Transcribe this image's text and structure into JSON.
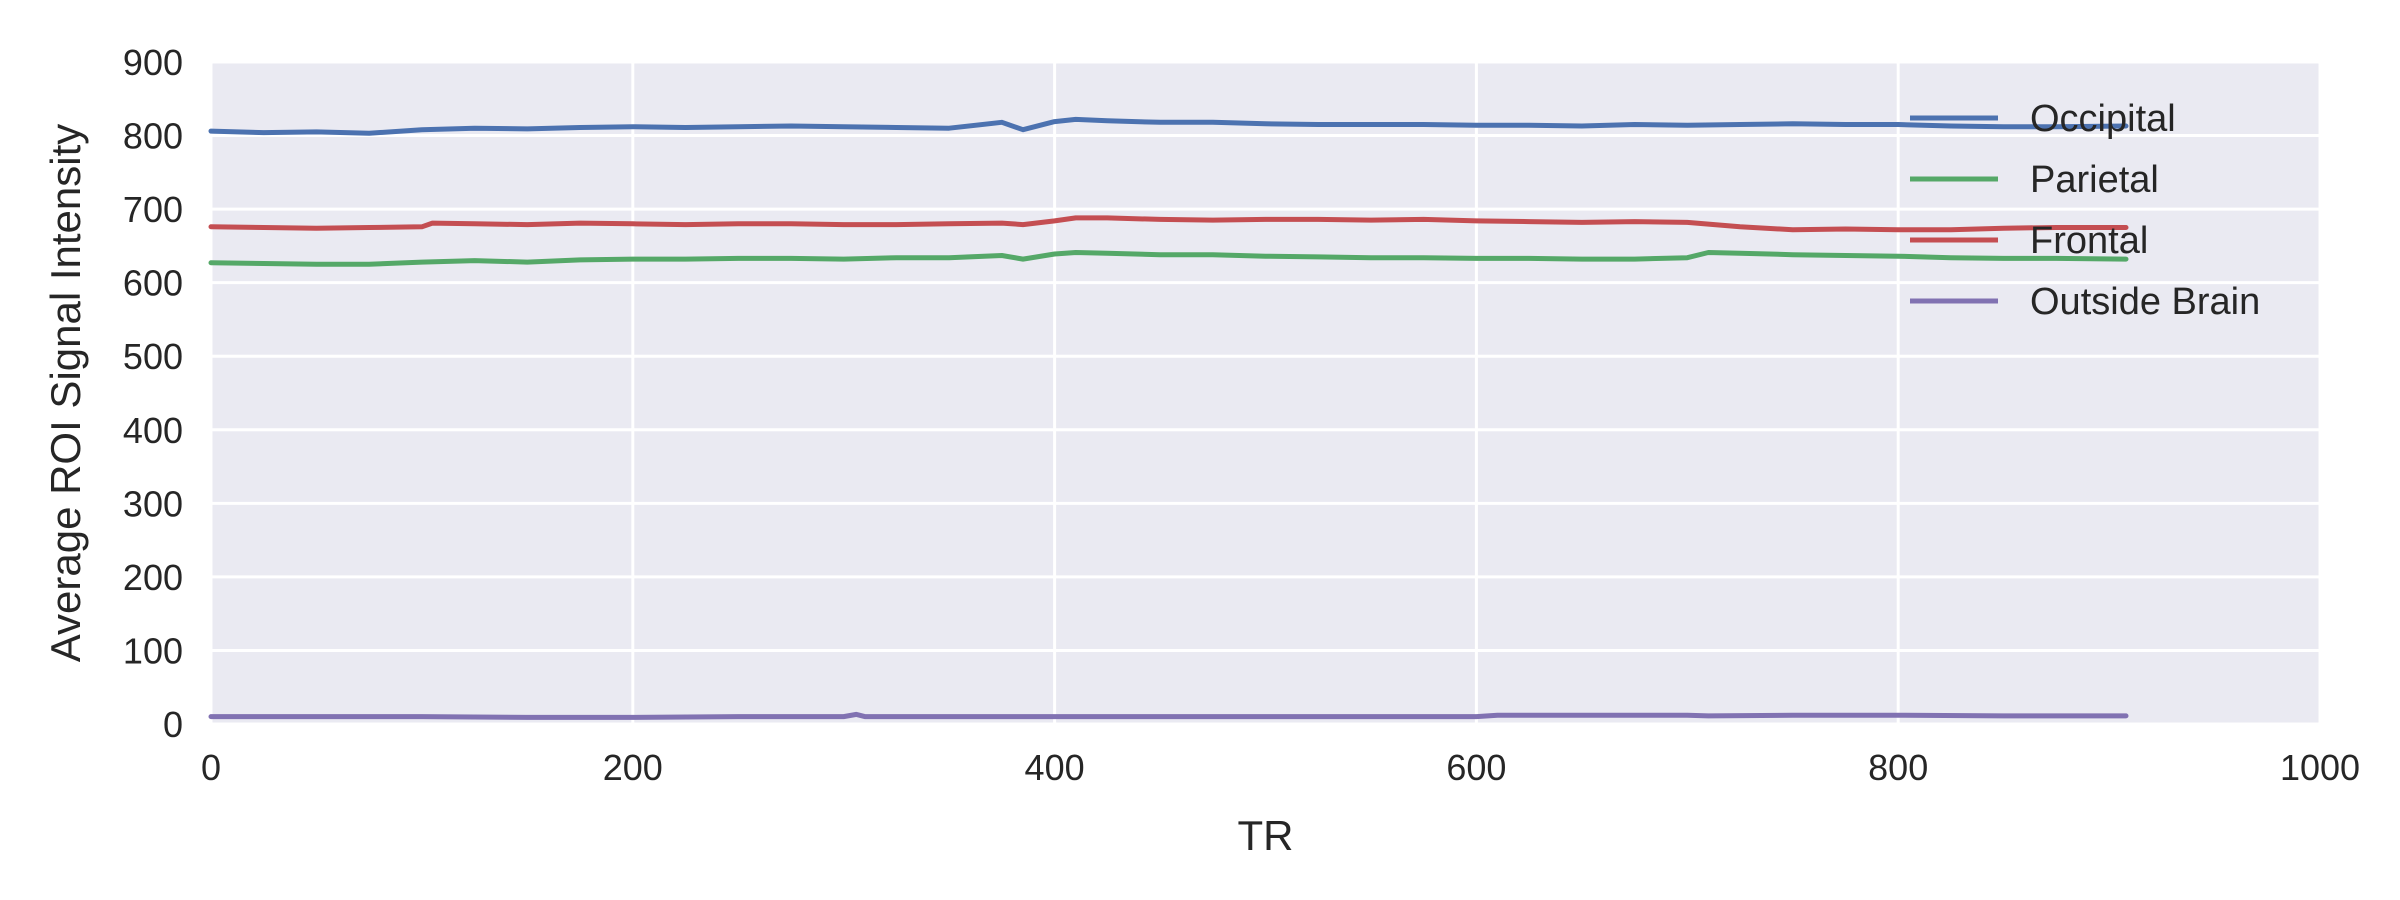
{
  "chart_data": {
    "type": "line",
    "title": "",
    "xlabel": "TR",
    "ylabel": "Average ROI Signal Intensity",
    "xlim": [
      0,
      1000
    ],
    "ylim": [
      0,
      900
    ],
    "xticks": [
      0,
      200,
      400,
      600,
      800,
      1000
    ],
    "yticks": [
      0,
      100,
      200,
      300,
      400,
      500,
      600,
      700,
      800,
      900
    ],
    "grid": true,
    "legend_position": "top-right",
    "style": {
      "background": "#EAEAF2",
      "grid_color": "#FFFFFF"
    },
    "series": [
      {
        "name": "Occipital",
        "color": "#4C72B0",
        "x": [
          0,
          25,
          50,
          75,
          100,
          125,
          150,
          175,
          200,
          225,
          250,
          275,
          300,
          325,
          350,
          375,
          385,
          400,
          410,
          425,
          450,
          475,
          500,
          525,
          550,
          575,
          600,
          625,
          650,
          675,
          700,
          725,
          750,
          775,
          800,
          825,
          850,
          875,
          908
        ],
        "y": [
          806,
          804,
          805,
          803,
          808,
          810,
          809,
          811,
          812,
          811,
          812,
          813,
          812,
          811,
          810,
          818,
          808,
          819,
          822,
          820,
          818,
          818,
          816,
          815,
          815,
          815,
          814,
          814,
          813,
          815,
          814,
          815,
          816,
          815,
          815,
          813,
          812,
          812,
          813
        ]
      },
      {
        "name": "Parietal",
        "color": "#55A868",
        "x": [
          0,
          25,
          50,
          75,
          100,
          125,
          150,
          175,
          200,
          225,
          250,
          275,
          300,
          325,
          350,
          375,
          385,
          400,
          410,
          425,
          450,
          475,
          500,
          525,
          550,
          575,
          600,
          625,
          650,
          675,
          700,
          710,
          725,
          750,
          775,
          800,
          825,
          850,
          875,
          908
        ],
        "y": [
          627,
          626,
          625,
          625,
          628,
          630,
          628,
          631,
          632,
          632,
          633,
          633,
          632,
          634,
          634,
          637,
          632,
          639,
          641,
          640,
          638,
          638,
          636,
          635,
          634,
          634,
          633,
          633,
          632,
          632,
          634,
          641,
          640,
          638,
          637,
          636,
          634,
          633,
          633,
          632
        ]
      },
      {
        "name": "Frontal",
        "color": "#C44E52",
        "x": [
          0,
          25,
          50,
          75,
          100,
          105,
          125,
          150,
          175,
          200,
          225,
          250,
          275,
          300,
          325,
          350,
          375,
          385,
          400,
          410,
          425,
          450,
          475,
          500,
          525,
          550,
          575,
          600,
          625,
          650,
          675,
          700,
          725,
          750,
          775,
          800,
          825,
          850,
          875,
          908
        ],
        "y": [
          676,
          675,
          674,
          675,
          676,
          681,
          680,
          679,
          681,
          680,
          679,
          680,
          680,
          679,
          679,
          680,
          681,
          679,
          684,
          688,
          688,
          686,
          685,
          686,
          686,
          685,
          686,
          684,
          683,
          682,
          683,
          682,
          676,
          672,
          673,
          672,
          672,
          674,
          675,
          675
        ]
      },
      {
        "name": "Outside Brain",
        "color": "#8172B2",
        "x": [
          0,
          50,
          100,
          150,
          200,
          250,
          300,
          306,
          310,
          350,
          400,
          450,
          500,
          550,
          600,
          610,
          650,
          700,
          710,
          750,
          800,
          850,
          908
        ],
        "y": [
          10,
          10,
          10,
          9,
          9,
          10,
          10,
          13,
          10,
          10,
          10,
          10,
          10,
          10,
          10,
          12,
          12,
          12,
          11,
          12,
          12,
          11,
          11
        ]
      }
    ]
  }
}
